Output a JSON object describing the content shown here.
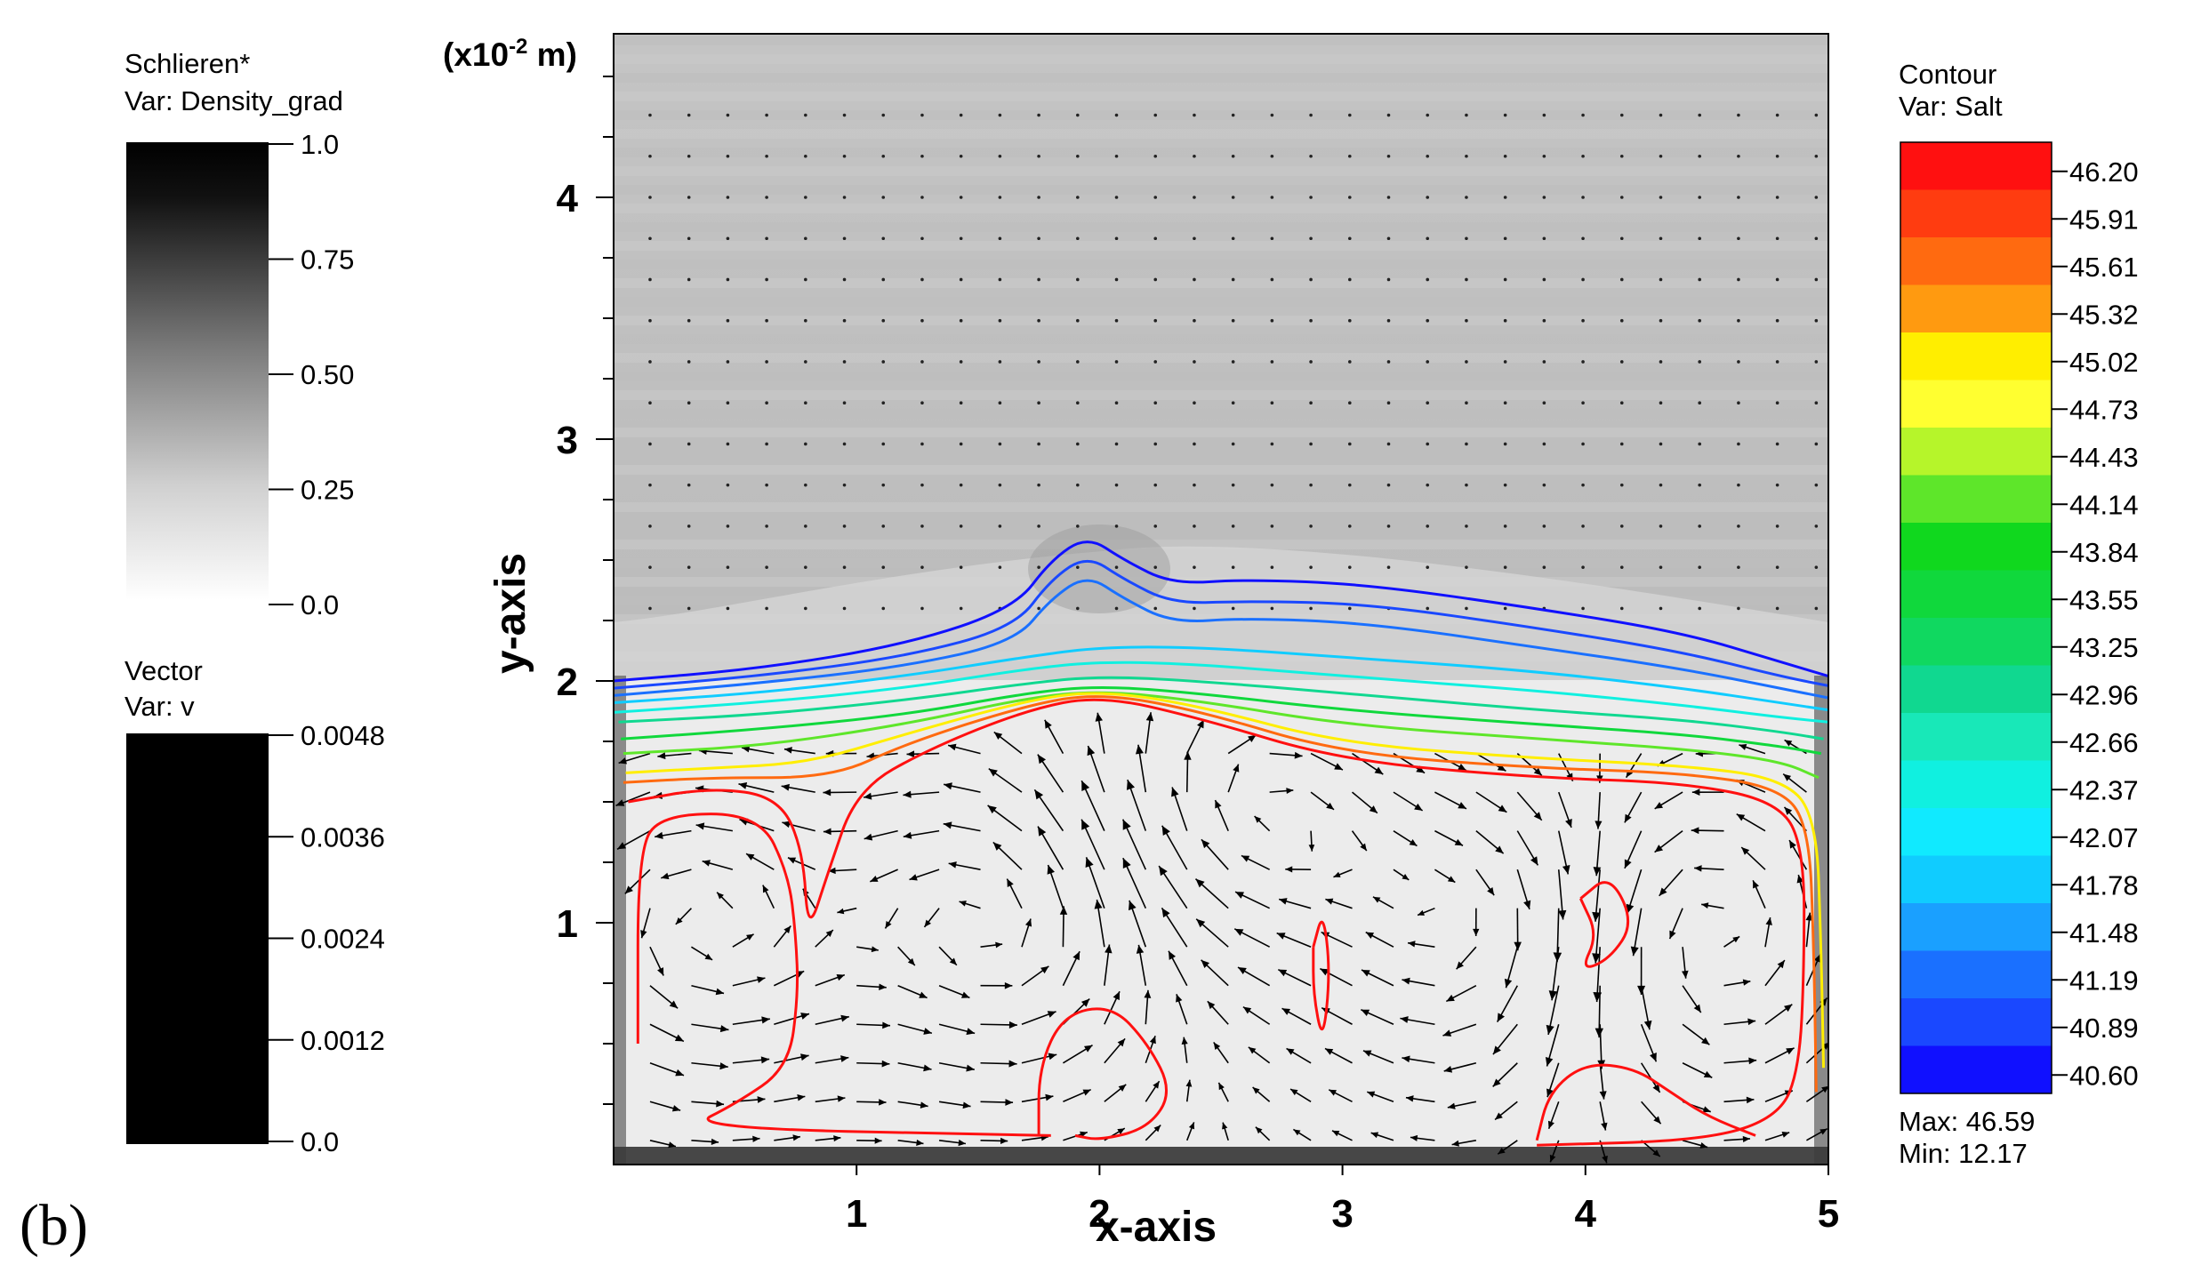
{
  "panel_label": "(b)",
  "schlieren_legend": {
    "title": "Schlieren*",
    "var": "Var: Density_grad",
    "ticks": [
      "1.0",
      "0.75",
      "0.50",
      "0.25",
      "0.0"
    ]
  },
  "vector_legend": {
    "title": "Vector",
    "var": "Var: v",
    "ticks": [
      "0.0048",
      "0.0036",
      "0.0024",
      "0.0012",
      "0.0"
    ]
  },
  "contour_legend": {
    "title": "Contour",
    "var": "Var: Salt",
    "levels": [
      "46.20",
      "45.91",
      "45.61",
      "45.32",
      "45.02",
      "44.73",
      "44.43",
      "44.14",
      "43.84",
      "43.55",
      "43.25",
      "42.96",
      "42.66",
      "42.37",
      "42.07",
      "41.78",
      "41.48",
      "41.19",
      "40.89",
      "40.60"
    ],
    "colors": [
      "#ff1010",
      "#ff3c10",
      "#ff6a10",
      "#ff9a10",
      "#ffee00",
      "#ffff30",
      "#b6f52a",
      "#5ee62a",
      "#10d81e",
      "#10d83c",
      "#10d860",
      "#10d890",
      "#18e8b8",
      "#10f0e0",
      "#10eaff",
      "#10ccff",
      "#1aa0ff",
      "#1a70ff",
      "#1a48ff",
      "#1010ff"
    ],
    "max_label": "Max: 46.59",
    "min_label": "Min: 12.17"
  },
  "axes": {
    "unit_label": "(x10",
    "unit_exp": "-2",
    "unit_suffix": " m)",
    "xlabel": "x-axis",
    "ylabel": "y-axis"
  },
  "chart_data": {
    "type": "contour",
    "xlim": [
      0,
      5
    ],
    "ylim": [
      0,
      4.6
    ],
    "x_ticks": [
      "1",
      "2",
      "3",
      "4",
      "5"
    ],
    "y_ticks": [
      "1",
      "2",
      "3",
      "4"
    ],
    "background_field": "Schlieren (Density_grad)",
    "contour_field": "Salt",
    "vortices": [
      {
        "x": 1.6,
        "y": 1.0,
        "dir": 1
      },
      {
        "x": 2.6,
        "y": 1.45,
        "dir": -1
      },
      {
        "x": 3.65,
        "y": 1.0,
        "dir": -1
      },
      {
        "x": 4.4,
        "y": 0.95,
        "dir": 1
      },
      {
        "x": 0.35,
        "y": 1.0,
        "dir": 1
      }
    ],
    "contours": [
      {
        "level": "40.60",
        "pts": [
          [
            0.0,
            2.0
          ],
          [
            0.6,
            2.05
          ],
          [
            1.2,
            2.15
          ],
          [
            1.65,
            2.3
          ],
          [
            1.8,
            2.5
          ],
          [
            1.95,
            2.6
          ],
          [
            2.1,
            2.5
          ],
          [
            2.3,
            2.4
          ],
          [
            2.6,
            2.42
          ],
          [
            3.1,
            2.4
          ],
          [
            3.8,
            2.3
          ],
          [
            4.4,
            2.2
          ],
          [
            4.8,
            2.08
          ],
          [
            5.0,
            2.02
          ]
        ]
      },
      {
        "level": "40.89",
        "pts": [
          [
            0.0,
            1.97
          ],
          [
            0.6,
            2.02
          ],
          [
            1.2,
            2.1
          ],
          [
            1.65,
            2.22
          ],
          [
            1.8,
            2.42
          ],
          [
            1.95,
            2.52
          ],
          [
            2.1,
            2.42
          ],
          [
            2.3,
            2.32
          ],
          [
            2.6,
            2.33
          ],
          [
            3.1,
            2.32
          ],
          [
            3.8,
            2.22
          ],
          [
            4.4,
            2.12
          ],
          [
            4.8,
            2.02
          ],
          [
            5.0,
            1.98
          ]
        ]
      },
      {
        "level": "41.19",
        "pts": [
          [
            0.0,
            1.94
          ],
          [
            0.6,
            1.99
          ],
          [
            1.2,
            2.06
          ],
          [
            1.65,
            2.16
          ],
          [
            1.8,
            2.34
          ],
          [
            1.95,
            2.44
          ],
          [
            2.1,
            2.34
          ],
          [
            2.3,
            2.24
          ],
          [
            2.6,
            2.26
          ],
          [
            3.1,
            2.24
          ],
          [
            3.8,
            2.14
          ],
          [
            4.4,
            2.05
          ],
          [
            4.8,
            1.97
          ],
          [
            5.0,
            1.93
          ]
        ]
      },
      {
        "level": "41.78",
        "pts": [
          [
            0.0,
            1.91
          ],
          [
            0.6,
            1.95
          ],
          [
            1.2,
            2.02
          ],
          [
            1.7,
            2.1
          ],
          [
            2.0,
            2.14
          ],
          [
            2.4,
            2.14
          ],
          [
            3.0,
            2.1
          ],
          [
            3.8,
            2.04
          ],
          [
            4.4,
            1.97
          ],
          [
            4.8,
            1.91
          ],
          [
            5.0,
            1.88
          ]
        ]
      },
      {
        "level": "42.37",
        "pts": [
          [
            0.0,
            1.87
          ],
          [
            0.6,
            1.91
          ],
          [
            1.2,
            1.97
          ],
          [
            1.7,
            2.05
          ],
          [
            2.0,
            2.08
          ],
          [
            2.4,
            2.07
          ],
          [
            3.0,
            2.02
          ],
          [
            3.8,
            1.96
          ],
          [
            4.4,
            1.9
          ],
          [
            4.8,
            1.85
          ],
          [
            5.0,
            1.83
          ]
        ]
      },
      {
        "level": "42.96",
        "pts": [
          [
            0.02,
            1.83
          ],
          [
            0.6,
            1.86
          ],
          [
            1.2,
            1.92
          ],
          [
            1.7,
            1.99
          ],
          [
            2.0,
            2.02
          ],
          [
            2.4,
            2.0
          ],
          [
            3.0,
            1.95
          ],
          [
            3.8,
            1.88
          ],
          [
            4.4,
            1.84
          ],
          [
            4.8,
            1.79
          ],
          [
            4.98,
            1.76
          ]
        ]
      },
      {
        "level": "43.55",
        "pts": [
          [
            0.03,
            1.76
          ],
          [
            0.6,
            1.8
          ],
          [
            1.2,
            1.86
          ],
          [
            1.7,
            1.95
          ],
          [
            2.0,
            1.98
          ],
          [
            2.4,
            1.95
          ],
          [
            3.0,
            1.88
          ],
          [
            3.8,
            1.82
          ],
          [
            4.4,
            1.78
          ],
          [
            4.8,
            1.73
          ],
          [
            4.97,
            1.7
          ]
        ]
      },
      {
        "level": "44.14",
        "pts": [
          [
            0.04,
            1.7
          ],
          [
            0.6,
            1.73
          ],
          [
            1.2,
            1.82
          ],
          [
            1.7,
            1.93
          ],
          [
            2.0,
            1.96
          ],
          [
            2.4,
            1.92
          ],
          [
            3.0,
            1.82
          ],
          [
            3.8,
            1.76
          ],
          [
            4.4,
            1.72
          ],
          [
            4.8,
            1.67
          ],
          [
            4.96,
            1.6
          ]
        ]
      },
      {
        "level": "45.02",
        "pts": [
          [
            0.05,
            1.62
          ],
          [
            0.4,
            1.64
          ],
          [
            0.8,
            1.66
          ],
          [
            1.2,
            1.78
          ],
          [
            1.7,
            1.92
          ],
          [
            2.0,
            1.96
          ],
          [
            2.4,
            1.9
          ],
          [
            3.0,
            1.74
          ],
          [
            3.8,
            1.68
          ],
          [
            4.4,
            1.65
          ],
          [
            4.8,
            1.6
          ],
          [
            4.95,
            1.45
          ],
          [
            4.97,
            0.9
          ],
          [
            4.98,
            0.4
          ]
        ]
      },
      {
        "level": "45.61",
        "pts": [
          [
            0.04,
            1.58
          ],
          [
            0.4,
            1.6
          ],
          [
            0.9,
            1.6
          ],
          [
            1.2,
            1.74
          ],
          [
            1.7,
            1.9
          ],
          [
            2.0,
            1.95
          ],
          [
            2.4,
            1.88
          ],
          [
            3.0,
            1.7
          ],
          [
            3.8,
            1.64
          ],
          [
            4.4,
            1.62
          ],
          [
            4.8,
            1.56
          ],
          [
            4.92,
            1.4
          ],
          [
            4.94,
            0.9
          ],
          [
            4.95,
            0.3
          ]
        ]
      },
      {
        "level": "46.20",
        "pts": [
          [
            0.06,
            1.5
          ],
          [
            0.4,
            1.56
          ],
          [
            0.68,
            1.52
          ],
          [
            0.78,
            1.3
          ],
          [
            0.8,
            0.95
          ],
          [
            0.88,
            1.2
          ],
          [
            1.0,
            1.55
          ],
          [
            1.3,
            1.72
          ],
          [
            1.7,
            1.88
          ],
          [
            2.0,
            1.94
          ],
          [
            2.4,
            1.85
          ],
          [
            3.0,
            1.67
          ],
          [
            3.8,
            1.6
          ],
          [
            4.4,
            1.58
          ],
          [
            4.8,
            1.5
          ],
          [
            4.9,
            1.3
          ],
          [
            4.9,
            0.8
          ],
          [
            4.88,
            0.4
          ],
          [
            4.8,
            0.2
          ],
          [
            4.5,
            0.1
          ],
          [
            3.8,
            0.08
          ]
        ]
      },
      {
        "level": "46.20",
        "pts": [
          [
            0.1,
            0.5
          ],
          [
            0.1,
            1.3
          ],
          [
            0.2,
            1.45
          ],
          [
            0.6,
            1.45
          ],
          [
            0.72,
            1.2
          ],
          [
            0.75,
            0.95
          ],
          [
            0.76,
            0.7
          ],
          [
            0.72,
            0.4
          ],
          [
            0.5,
            0.25
          ],
          [
            0.3,
            0.15
          ],
          [
            1.8,
            0.12
          ]
        ]
      },
      {
        "level": "46.20",
        "pts": [
          [
            1.75,
            0.12
          ],
          [
            1.75,
            0.4
          ],
          [
            1.85,
            0.62
          ],
          [
            2.05,
            0.66
          ],
          [
            2.2,
            0.5
          ],
          [
            2.3,
            0.3
          ],
          [
            2.2,
            0.15
          ],
          [
            2.0,
            0.1
          ],
          [
            1.9,
            0.12
          ]
        ]
      },
      {
        "level": "46.20",
        "pts": [
          [
            3.8,
            0.1
          ],
          [
            3.85,
            0.3
          ],
          [
            4.0,
            0.42
          ],
          [
            4.2,
            0.4
          ],
          [
            4.35,
            0.3
          ],
          [
            4.5,
            0.2
          ],
          [
            4.7,
            0.12
          ]
        ]
      },
      {
        "level": "46.20",
        "pts": [
          [
            3.98,
            1.1
          ],
          [
            4.1,
            1.2
          ],
          [
            4.2,
            1.0
          ],
          [
            4.1,
            0.85
          ],
          [
            3.98,
            0.8
          ],
          [
            4.05,
            0.95
          ],
          [
            3.98,
            1.1
          ]
        ]
      },
      {
        "level": "46.20",
        "pts": [
          [
            2.88,
            0.9
          ],
          [
            2.92,
            1.05
          ],
          [
            2.95,
            0.8
          ],
          [
            2.92,
            0.5
          ],
          [
            2.88,
            0.7
          ],
          [
            2.88,
            0.9
          ]
        ]
      }
    ]
  }
}
